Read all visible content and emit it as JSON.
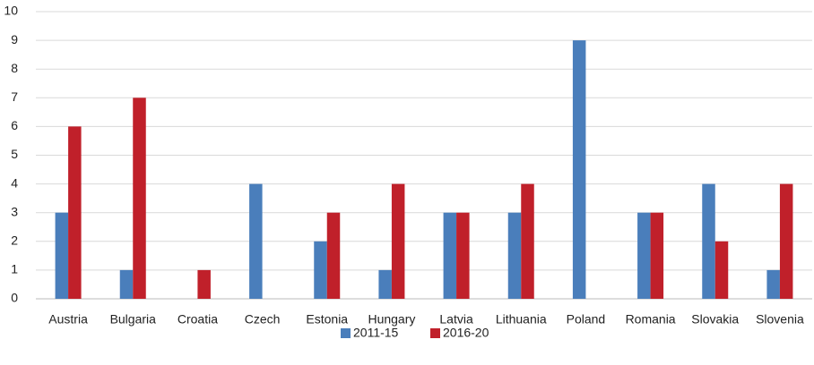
{
  "chart_data": {
    "type": "bar",
    "categories": [
      "Austria",
      "Bulgaria",
      "Croatia",
      "Czech",
      "Estonia",
      "Hungary",
      "Latvia",
      "Lithuania",
      "Poland",
      "Romania",
      "Slovakia",
      "Slovenia"
    ],
    "series": [
      {
        "name": "2011-15",
        "color": "#4a7ebb",
        "values": [
          3,
          1,
          0,
          4,
          2,
          1,
          3,
          3,
          9,
          3,
          4,
          1
        ]
      },
      {
        "name": "2016-20",
        "color": "#c0202a",
        "values": [
          6,
          7,
          1,
          0,
          3,
          4,
          3,
          4,
          0,
          3,
          2,
          4
        ]
      }
    ],
    "ylim": [
      0,
      10
    ],
    "yticks": [
      0,
      1,
      2,
      3,
      4,
      5,
      6,
      7,
      8,
      9,
      10
    ],
    "grid": true,
    "legend": "bottom"
  }
}
